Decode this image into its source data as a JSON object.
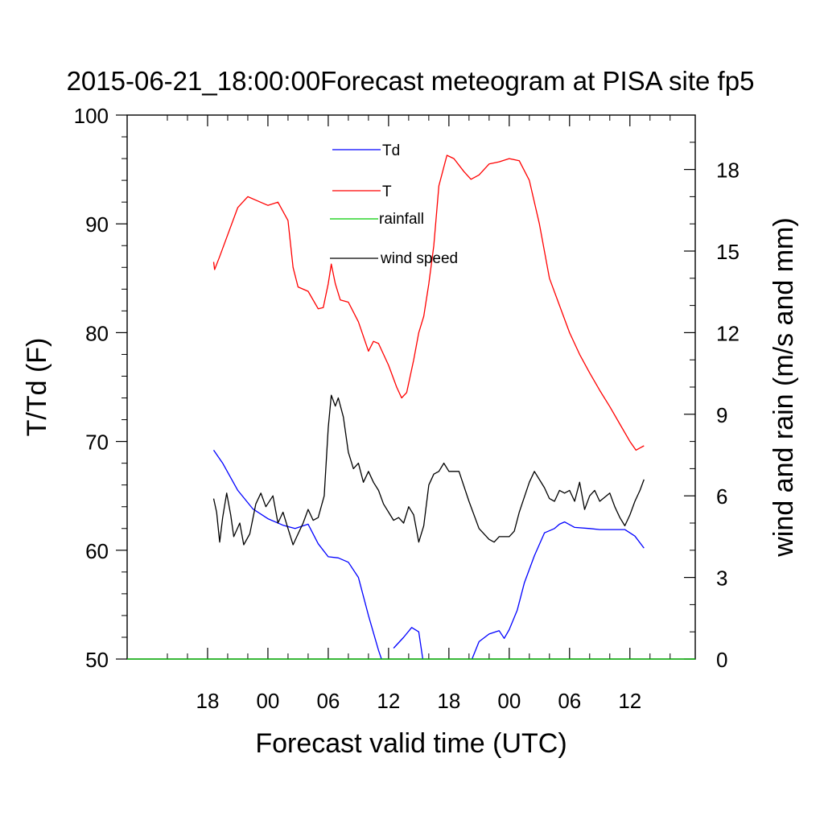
{
  "chart_data": {
    "type": "line",
    "title": "2015-06-21_18:00:00Forecast meteogram at PISA site fp5",
    "xlabel": "Forecast valid time (UTC)",
    "ylabel_left": "T/Td (F)",
    "ylabel_right": "wind and rain (m/s and mm)",
    "x_unit": "hours since 12 UTC on forecast day 1",
    "xlim": [
      -8,
      48.5
    ],
    "ylim_left": [
      50,
      100
    ],
    "ylim_right": [
      0,
      20
    ],
    "x_ticks": [
      {
        "x": 0,
        "label": "18"
      },
      {
        "x": 6,
        "label": "00"
      },
      {
        "x": 12,
        "label": "06"
      },
      {
        "x": 18,
        "label": "12"
      },
      {
        "x": 24,
        "label": "18"
      },
      {
        "x": 30,
        "label": "00"
      },
      {
        "x": 36,
        "label": "06"
      },
      {
        "x": 42,
        "label": "12"
      }
    ],
    "y_ticks_left": [
      {
        "v": 50,
        "label": "50"
      },
      {
        "v": 60,
        "label": "60"
      },
      {
        "v": 70,
        "label": "70"
      },
      {
        "v": 80,
        "label": "80"
      },
      {
        "v": 90,
        "label": "90"
      },
      {
        "v": 100,
        "label": "100"
      }
    ],
    "y_ticks_right": [
      {
        "v": 0,
        "label": "0"
      },
      {
        "v": 3,
        "label": "3"
      },
      {
        "v": 6,
        "label": "6"
      },
      {
        "v": 9,
        "label": "9"
      },
      {
        "v": 12,
        "label": "12"
      },
      {
        "v": 15,
        "label": "15"
      },
      {
        "v": 18,
        "label": "18"
      }
    ],
    "series": [
      {
        "name": "Td",
        "color": "#0000ff",
        "axis": "left",
        "points": [
          [
            0.6,
            69.2
          ],
          [
            1.5,
            68
          ],
          [
            3,
            65.5
          ],
          [
            4.5,
            63.8
          ],
          [
            6,
            62.9
          ],
          [
            7.5,
            62.3
          ],
          [
            8.7,
            62
          ],
          [
            10,
            62.4
          ],
          [
            11,
            60.6
          ],
          [
            12,
            59.4
          ],
          [
            13,
            59.3
          ],
          [
            14,
            58.9
          ],
          [
            15,
            57.5
          ],
          [
            16,
            54
          ],
          [
            17,
            50.8
          ],
          [
            17.3,
            50
          ],
          null,
          [
            18.5,
            51
          ],
          [
            19.5,
            52
          ],
          [
            20.3,
            52.9
          ],
          [
            21,
            52.5
          ],
          [
            21.4,
            50
          ],
          null,
          [
            26.3,
            50
          ],
          [
            27,
            51.6
          ],
          [
            28,
            52.3
          ],
          [
            29,
            52.6
          ],
          [
            29.5,
            51.9
          ],
          [
            30,
            52.7
          ],
          [
            30.8,
            54.5
          ],
          [
            31.5,
            57
          ],
          [
            32.5,
            59.5
          ],
          [
            33.5,
            61.6
          ],
          [
            34.5,
            62
          ],
          [
            35,
            62.4
          ],
          [
            35.5,
            62.6
          ],
          [
            36.5,
            62.1
          ],
          [
            38,
            62
          ],
          [
            39,
            61.9
          ],
          [
            40.5,
            61.9
          ],
          [
            41.5,
            61.9
          ],
          [
            42.5,
            61.3
          ],
          [
            43.4,
            60.2
          ]
        ]
      },
      {
        "name": "T",
        "color": "#ff0000",
        "axis": "left",
        "points": [
          [
            0.6,
            86.5
          ],
          [
            0.7,
            85.8
          ],
          [
            1.2,
            87
          ],
          [
            2,
            89
          ],
          [
            3,
            91.5
          ],
          [
            4,
            92.5
          ],
          [
            5,
            92.1
          ],
          [
            6,
            91.7
          ],
          [
            7,
            92
          ],
          [
            8,
            90.3
          ],
          [
            8.5,
            86
          ],
          [
            9,
            84.2
          ],
          [
            10,
            83.8
          ],
          [
            11,
            82.2
          ],
          [
            11.5,
            82.3
          ],
          [
            12,
            84.5
          ],
          [
            12.3,
            86.3
          ],
          [
            12.7,
            84.5
          ],
          [
            13.2,
            83
          ],
          [
            14,
            82.8
          ],
          [
            15,
            81
          ],
          [
            16,
            78.3
          ],
          [
            16.5,
            79.2
          ],
          [
            17,
            79
          ],
          [
            18,
            77
          ],
          [
            18.8,
            75
          ],
          [
            19.3,
            74
          ],
          [
            19.8,
            74.5
          ],
          [
            20.5,
            77.5
          ],
          [
            21,
            80
          ],
          [
            21.5,
            81.5
          ],
          [
            22,
            84.5
          ],
          [
            22.5,
            88
          ],
          [
            23,
            93.5
          ],
          [
            23.8,
            96.3
          ],
          [
            24.5,
            96
          ],
          [
            25.5,
            94.8
          ],
          [
            26.2,
            94.1
          ],
          [
            27,
            94.5
          ],
          [
            28,
            95.5
          ],
          [
            29,
            95.7
          ],
          [
            30,
            96
          ],
          [
            31,
            95.8
          ],
          [
            32,
            94
          ],
          [
            33,
            90
          ],
          [
            34,
            85
          ],
          [
            35,
            82.5
          ],
          [
            36,
            80
          ],
          [
            37,
            78
          ],
          [
            38,
            76.3
          ],
          [
            39,
            74.7
          ],
          [
            40,
            73.2
          ],
          [
            41,
            71.6
          ],
          [
            42,
            70
          ],
          [
            42.6,
            69.2
          ],
          [
            43,
            69.4
          ],
          [
            43.4,
            69.6
          ]
        ]
      },
      {
        "name": "rainfall",
        "color": "#00cc00",
        "axis": "right",
        "points": [
          [
            -8,
            0
          ],
          [
            48.5,
            0
          ]
        ]
      },
      {
        "name": "wind speed",
        "color": "#000000",
        "axis": "right",
        "points": [
          [
            0.6,
            5.9
          ],
          [
            0.9,
            5.4
          ],
          [
            1.2,
            4.3
          ],
          [
            1.5,
            5.2
          ],
          [
            1.9,
            6.1
          ],
          [
            2.3,
            5.3
          ],
          [
            2.6,
            4.5
          ],
          [
            3.2,
            5
          ],
          [
            3.6,
            4.2
          ],
          [
            4.2,
            4.6
          ],
          [
            4.8,
            5.7
          ],
          [
            5.3,
            6.1
          ],
          [
            5.8,
            5.6
          ],
          [
            6.5,
            6
          ],
          [
            7,
            5
          ],
          [
            7.5,
            5.4
          ],
          [
            8,
            4.8
          ],
          [
            8.5,
            4.2
          ],
          [
            9,
            4.6
          ],
          [
            9.5,
            5
          ],
          [
            10,
            5.5
          ],
          [
            10.5,
            5.1
          ],
          [
            11,
            5.2
          ],
          [
            11.6,
            6
          ],
          [
            12,
            8.5
          ],
          [
            12.3,
            9.7
          ],
          [
            12.7,
            9.3
          ],
          [
            13,
            9.6
          ],
          [
            13.5,
            8.9
          ],
          [
            14,
            7.6
          ],
          [
            14.5,
            7
          ],
          [
            15,
            7.2
          ],
          [
            15.5,
            6.5
          ],
          [
            16,
            6.9
          ],
          [
            16.5,
            6.5
          ],
          [
            17,
            6.2
          ],
          [
            17.5,
            5.7
          ],
          [
            18,
            5.4
          ],
          [
            18.5,
            5.1
          ],
          [
            19,
            5.2
          ],
          [
            19.5,
            5
          ],
          [
            20,
            5.6
          ],
          [
            20.5,
            5.3
          ],
          [
            21,
            4.3
          ],
          [
            21.5,
            4.9
          ],
          [
            22,
            6.4
          ],
          [
            22.5,
            6.8
          ],
          [
            23,
            6.9
          ],
          [
            23.5,
            7.2
          ],
          [
            24,
            6.9
          ],
          [
            25,
            6.9
          ],
          [
            26,
            5.8
          ],
          [
            27,
            4.8
          ],
          [
            28,
            4.4
          ],
          [
            28.5,
            4.3
          ],
          [
            29,
            4.5
          ],
          [
            30,
            4.5
          ],
          [
            30.5,
            4.7
          ],
          [
            31,
            5.4
          ],
          [
            32,
            6.5
          ],
          [
            32.5,
            6.9
          ],
          [
            33,
            6.6
          ],
          [
            33.5,
            6.3
          ],
          [
            34,
            5.9
          ],
          [
            34.5,
            5.8
          ],
          [
            35,
            6.2
          ],
          [
            35.5,
            6.1
          ],
          [
            36,
            6.2
          ],
          [
            36.5,
            5.8
          ],
          [
            37,
            6.5
          ],
          [
            37.5,
            5.5
          ],
          [
            38,
            6
          ],
          [
            38.5,
            6.2
          ],
          [
            39,
            5.8
          ],
          [
            40,
            6.1
          ],
          [
            40.5,
            5.6
          ],
          [
            41,
            5.2
          ],
          [
            41.5,
            4.9
          ],
          [
            42,
            5.3
          ],
          [
            42.5,
            5.8
          ],
          [
            43,
            6.2
          ],
          [
            43.4,
            6.6
          ]
        ]
      }
    ],
    "legend": {
      "placement": "top-center",
      "entries": [
        {
          "label": "Td",
          "color": "#0000ff"
        },
        {
          "label": "T",
          "color": "#ff0000"
        },
        {
          "label": "rainfall",
          "color": "#00cc00"
        },
        {
          "label": "wind speed",
          "color": "#000000"
        }
      ]
    }
  }
}
